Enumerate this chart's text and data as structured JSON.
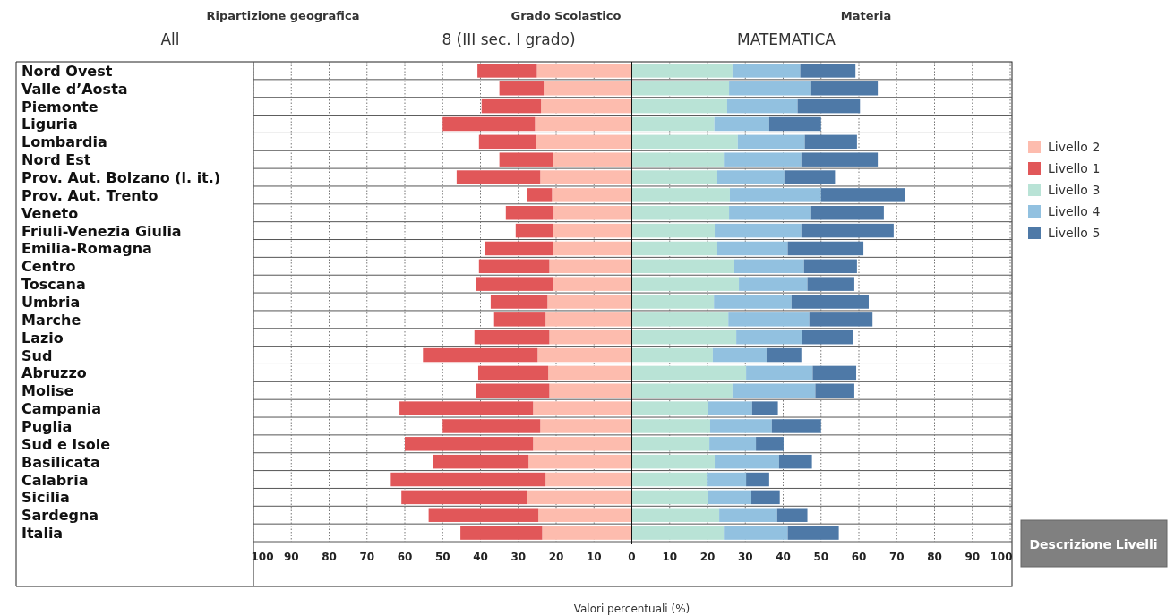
{
  "chart_data": {
    "type": "bar",
    "orientation": "horizontal",
    "stacked": true,
    "xlabel": "Valori percentuali (%)",
    "annotations": [
      "Ripartizione geografica",
      "All",
      "Grado Scolastico",
      "8 (III sec. I grado)",
      "Materia",
      "MATEMATICA",
      "Descrizione Livelli"
    ],
    "categories": [
      "Nord Ovest",
      "Valle d’Aosta",
      "Piemonte",
      "Liguria",
      "Lombardia",
      "Nord Est",
      "Prov. Aut. Bolzano (l. it.)",
      "Prov. Aut. Trento",
      "Veneto",
      "Friuli-Venezia Giulia",
      "Emilia-Romagna",
      "Centro",
      "Toscana",
      "Umbria",
      "Marche",
      "Lazio",
      "Sud",
      "Abruzzo",
      "Molise",
      "Campania",
      "Puglia",
      "Sud e Isole",
      "Basilicata",
      "Calabria",
      "Sicilia",
      "Sardegna",
      "Italia"
    ],
    "series": [
      {
        "name": "Livello 2",
        "color": "#fdbcae",
        "values": [
          -25.1,
          -23.3,
          -24.0,
          -25.6,
          -25.4,
          -20.9,
          -24.2,
          -21.1,
          -20.7,
          -20.9,
          -20.9,
          -21.8,
          -20.9,
          -22.3,
          -22.8,
          -21.8,
          -24.9,
          -22.1,
          -21.8,
          -26.1,
          -24.2,
          -26.1,
          -27.3,
          -22.8,
          -27.7,
          -24.7,
          -23.7
        ]
      },
      {
        "name": "Livello 1",
        "color": "#e15759",
        "values": [
          -15.7,
          -11.7,
          -15.7,
          -24.4,
          -15.0,
          -14.1,
          -22.1,
          -6.6,
          -12.6,
          -9.8,
          -17.8,
          -18.6,
          -20.2,
          -15.0,
          -13.6,
          -19.8,
          -30.3,
          -18.5,
          -19.3,
          -35.3,
          -25.8,
          -33.9,
          -25.2,
          -40.9,
          -33.2,
          -29.0,
          -21.6
        ]
      },
      {
        "name": "Livello 3",
        "color": "#b9e3d6",
        "values": [
          26.6,
          25.7,
          25.2,
          21.8,
          28.0,
          24.3,
          22.6,
          25.9,
          25.7,
          21.9,
          22.6,
          27.1,
          28.3,
          21.7,
          25.5,
          27.6,
          21.4,
          30.2,
          26.6,
          20.0,
          20.7,
          20.5,
          21.9,
          19.8,
          20.0,
          23.1,
          24.3
        ]
      },
      {
        "name": "Livello 4",
        "color": "#92c1e0",
        "values": [
          17.9,
          21.7,
          18.6,
          14.5,
          17.7,
          20.5,
          17.7,
          24.1,
          21.7,
          22.9,
          18.6,
          18.4,
          18.1,
          20.5,
          21.4,
          17.4,
          14.2,
          17.6,
          21.9,
          11.8,
          16.3,
          12.3,
          17.0,
          10.4,
          11.6,
          15.3,
          16.9
        ]
      },
      {
        "name": "Livello 5",
        "color": "#4e79a7",
        "values": [
          14.6,
          17.6,
          16.5,
          13.7,
          13.8,
          20.2,
          13.4,
          22.3,
          19.2,
          24.4,
          20.0,
          14.0,
          12.4,
          20.4,
          16.7,
          13.4,
          9.2,
          11.5,
          10.3,
          6.8,
          13.0,
          7.3,
          8.7,
          6.1,
          7.5,
          8.0,
          13.5
        ]
      }
    ],
    "xlim": [
      -100,
      100
    ],
    "xticks": [
      {
        "value": -100,
        "label": "100"
      },
      {
        "value": -90,
        "label": "90"
      },
      {
        "value": -80,
        "label": "80"
      },
      {
        "value": -70,
        "label": "70"
      },
      {
        "value": -60,
        "label": "60"
      },
      {
        "value": -50,
        "label": "50"
      },
      {
        "value": -40,
        "label": "40"
      },
      {
        "value": -30,
        "label": "30"
      },
      {
        "value": -20,
        "label": "20"
      },
      {
        "value": -10,
        "label": "10"
      },
      0,
      10,
      20,
      30,
      40,
      50,
      60,
      70,
      80,
      90,
      100
    ],
    "grid": "x",
    "legend": "right"
  }
}
